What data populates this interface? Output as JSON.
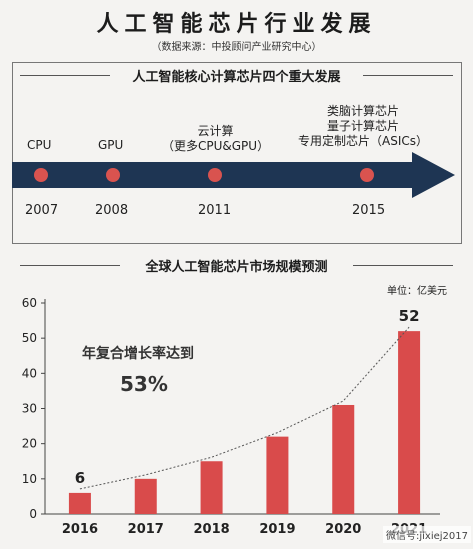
{
  "title": "人工智能芯片行业发展",
  "source": "（数据来源：中投顾问产业研究中心）",
  "timeline": {
    "heading": "人工智能核心计算芯片四个重大发展",
    "events": [
      {
        "label_lines": [
          "CPU"
        ],
        "year": "2007"
      },
      {
        "label_lines": [
          "GPU"
        ],
        "year": "2008"
      },
      {
        "label_lines": [
          "云计算",
          "（更多CPU&GPU）"
        ],
        "year": "2011"
      },
      {
        "label_lines": [
          "类脑计算芯片",
          "量子计算芯片",
          "专用定制芯片（ASICs）"
        ],
        "year": "2015"
      }
    ],
    "colors": {
      "arrow": "#1e3553",
      "dot": "#d9534f"
    }
  },
  "market": {
    "heading": "全球人工智能芯片市场规模预测",
    "unit": "单位：亿美元",
    "annotation_line1": "年复合增长率达到",
    "annotation_line2": "53%"
  },
  "chart_data": {
    "type": "bar",
    "title": "全球人工智能芯片市场规模预测",
    "categories": [
      "2016",
      "2017",
      "2018",
      "2019",
      "2020",
      "2021"
    ],
    "values": [
      6,
      10,
      15,
      22,
      31,
      52
    ],
    "data_labels": {
      "2016": "6",
      "2021": "52"
    },
    "ylim": [
      0,
      60
    ],
    "yticks": [
      "0",
      "10",
      "20",
      "30",
      "40",
      "50",
      "60"
    ],
    "grid": false,
    "trend_line": true,
    "colors": {
      "bar": "#d94b4b",
      "trend": "#555555"
    }
  },
  "watermark": "微信号:jixiej2017"
}
